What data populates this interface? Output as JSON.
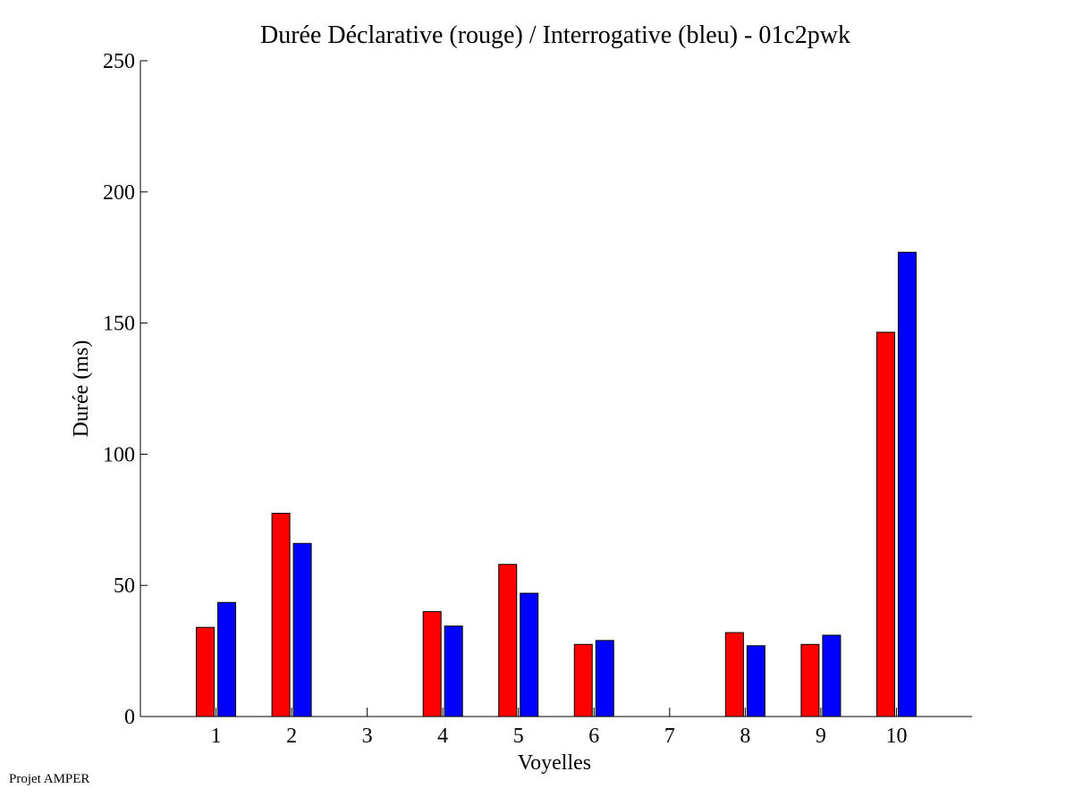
{
  "footer": {
    "text": "Projet AMPER"
  },
  "chart_data": {
    "type": "bar",
    "title": "Durée Déclarative (rouge) / Interrogative (bleu) - 01c2pwk",
    "xlabel": "Voyelles",
    "ylabel": "Durée (ms)",
    "categories": [
      "1",
      "2",
      "3",
      "4",
      "5",
      "6",
      "7",
      "8",
      "9",
      "10"
    ],
    "ylim": [
      0,
      250
    ],
    "yticks": [
      0,
      50,
      100,
      150,
      200,
      250
    ],
    "grid": false,
    "series": [
      {
        "color": "#ff0000",
        "values": [
          34,
          77.5,
          0,
          40,
          58,
          27.5,
          0,
          32,
          27.5,
          146.5
        ]
      },
      {
        "color": "#0000ff",
        "values": [
          43.5,
          66,
          0,
          34.5,
          47,
          29,
          0,
          27,
          31,
          177
        ]
      }
    ]
  }
}
